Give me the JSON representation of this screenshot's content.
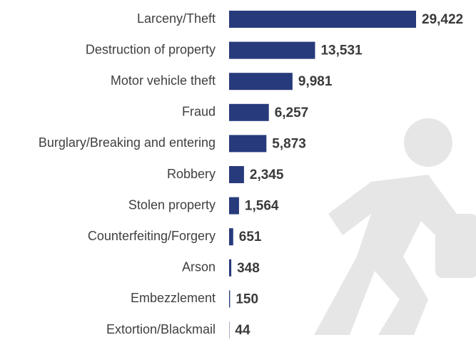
{
  "chart_data": {
    "type": "bar",
    "orientation": "horizontal",
    "categories": [
      "Larceny/Theft",
      "Destruction of property",
      "Motor vehicle theft",
      "Fraud",
      "Burglary/Breaking and entering",
      "Robbery",
      "Stolen property",
      "Counterfeiting/Forgery",
      "Arson",
      "Embezzlement",
      "Extortion/Blackmail"
    ],
    "values": [
      29422,
      13531,
      9981,
      6257,
      5873,
      2345,
      1564,
      651,
      348,
      150,
      44
    ],
    "value_labels": [
      "29,422",
      "13,531",
      "9,981",
      "6,257",
      "5,873",
      "2,345",
      "1,564",
      "651",
      "348",
      "150",
      "44"
    ],
    "color": "#273a7b"
  }
}
